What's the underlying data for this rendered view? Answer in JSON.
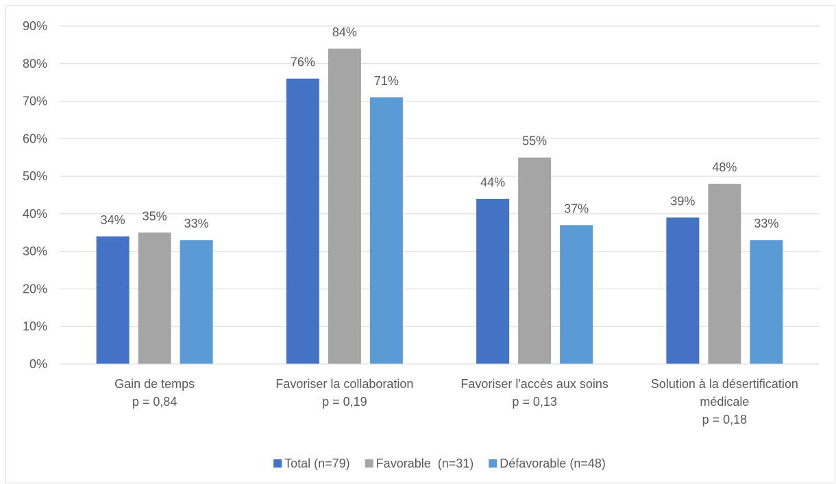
{
  "chart_data": {
    "type": "bar",
    "categories": [
      [
        "Gain de temps",
        "p = 0,84"
      ],
      [
        "Favoriser la collaboration",
        "p = 0,19"
      ],
      [
        "Favoriser l'accès aux soins",
        "p = 0,13"
      ],
      [
        "Solution à la désertification",
        "médicale",
        "p = 0,18"
      ]
    ],
    "series": [
      {
        "name": "Total (n=79)",
        "values": [
          34,
          76,
          44,
          39
        ],
        "color": "#4472C4"
      },
      {
        "name": "Favorable  (n=31)",
        "values": [
          35,
          84,
          55,
          48
        ],
        "color": "#A5A5A5"
      },
      {
        "name": "Défavorable (n=48)",
        "values": [
          33,
          71,
          37,
          33
        ],
        "color": "#5B9BD5"
      }
    ],
    "value_suffix": "%",
    "yticks": [
      "0%",
      "10%",
      "20%",
      "30%",
      "40%",
      "50%",
      "60%",
      "70%",
      "80%",
      "90%"
    ],
    "ylim": [
      0,
      90
    ],
    "grid": true,
    "legend_position": "bottom",
    "gridline_color": "#d9d9d9"
  }
}
